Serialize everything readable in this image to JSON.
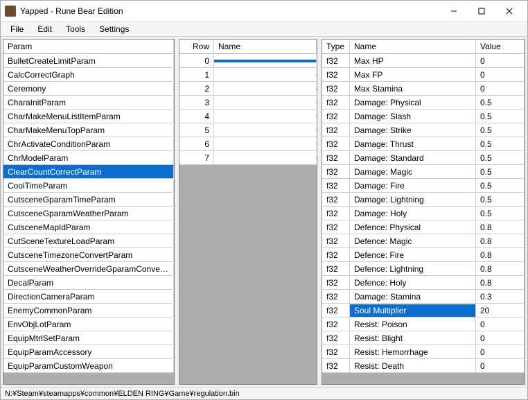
{
  "window": {
    "title": "Yapped - Rune Bear Edition"
  },
  "menu": {
    "file": "File",
    "edit": "Edit",
    "tools": "Tools",
    "settings": "Settings"
  },
  "left": {
    "header": "Param",
    "selected_index": 8,
    "items": [
      "BulletCreateLimitParam",
      "CalcCorrectGraph",
      "Ceremony",
      "CharaInitParam",
      "CharMakeMenuListItemParam",
      "CharMakeMenuTopParam",
      "ChrActivateConditionParam",
      "ChrModelParam",
      "ClearCountCorrectParam",
      "CoolTimeParam",
      "CutsceneGparamTimeParam",
      "CutsceneGparamWeatherParam",
      "CutsceneMapIdParam",
      "CutSceneTextureLoadParam",
      "CutsceneTimezoneConvertParam",
      "CutsceneWeatherOverrideGparamConvert...",
      "DecalParam",
      "DirectionCameraParam",
      "EnemyCommonParam",
      "EnvObjLotParam",
      "EquipMtrlSetParam",
      "EquipParamAccessory",
      "EquipParamCustomWeapon"
    ]
  },
  "middle": {
    "header_row": "Row",
    "header_name": "Name",
    "selected_index": 0,
    "rows": [
      {
        "row": "0",
        "name": ""
      },
      {
        "row": "1",
        "name": ""
      },
      {
        "row": "2",
        "name": ""
      },
      {
        "row": "3",
        "name": ""
      },
      {
        "row": "4",
        "name": ""
      },
      {
        "row": "5",
        "name": ""
      },
      {
        "row": "6",
        "name": ""
      },
      {
        "row": "7",
        "name": ""
      }
    ]
  },
  "right": {
    "header_type": "Type",
    "header_name": "Name",
    "header_value": "Value",
    "selected_name_index": 17,
    "rows": [
      {
        "type": "f32",
        "name": "Max HP",
        "value": "0"
      },
      {
        "type": "f32",
        "name": "Max FP",
        "value": "0"
      },
      {
        "type": "f32",
        "name": "Max Stamina",
        "value": "0"
      },
      {
        "type": "f32",
        "name": "Damage: Physical",
        "value": "0.5"
      },
      {
        "type": "f32",
        "name": "Damage: Slash",
        "value": "0.5"
      },
      {
        "type": "f32",
        "name": "Damage: Strike",
        "value": "0.5"
      },
      {
        "type": "f32",
        "name": "Damage: Thrust",
        "value": "0.5"
      },
      {
        "type": "f32",
        "name": "Damage: Standard",
        "value": "0.5"
      },
      {
        "type": "f32",
        "name": "Damage: Magic",
        "value": "0.5"
      },
      {
        "type": "f32",
        "name": "Damage: Fire",
        "value": "0.5"
      },
      {
        "type": "f32",
        "name": "Damage: Lightning",
        "value": "0.5"
      },
      {
        "type": "f32",
        "name": "Damage: Holy",
        "value": "0.5"
      },
      {
        "type": "f32",
        "name": "Defence: Physical",
        "value": "0.8"
      },
      {
        "type": "f32",
        "name": "Defence: Magic",
        "value": "0.8"
      },
      {
        "type": "f32",
        "name": "Defence: Fire",
        "value": "0.8"
      },
      {
        "type": "f32",
        "name": "Defence: Lightning",
        "value": "0.8"
      },
      {
        "type": "f32",
        "name": "Defence: Holy",
        "value": "0.8"
      },
      {
        "type": "f32",
        "name": "Damage: Stamina",
        "value": "0.3"
      },
      {
        "type": "f32",
        "name": "Soul Multiplier",
        "value": "20"
      },
      {
        "type": "f32",
        "name": "Resist: Poison",
        "value": "0"
      },
      {
        "type": "f32",
        "name": "Resist: Blight",
        "value": "0"
      },
      {
        "type": "f32",
        "name": "Resist: Hemorrhage",
        "value": "0"
      },
      {
        "type": "f32",
        "name": "Resist: Death",
        "value": "0"
      }
    ]
  },
  "statusbar": {
    "path": "N:¥Steam¥steamapps¥common¥ELDEN RING¥Game¥regulation.bin"
  }
}
